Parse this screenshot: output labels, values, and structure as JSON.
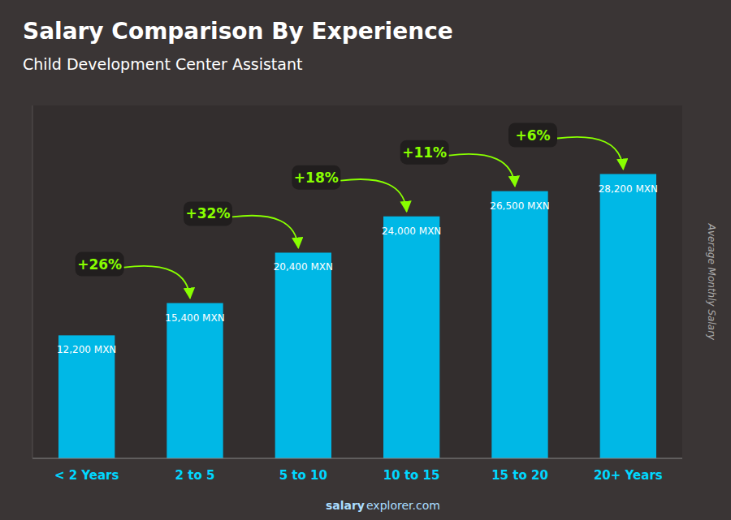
{
  "chart_data": {
    "type": "bar",
    "title": "Salary Comparison By Experience",
    "subtitle": "Child Development Center Assistant",
    "ylabel": "Average Monthly Salary",
    "categories": [
      "< 2 Years",
      "2 to 5",
      "5 to 10",
      "10 to 15",
      "15 to 20",
      "20+ Years"
    ],
    "values": [
      12200,
      15400,
      20400,
      24000,
      26500,
      28200
    ],
    "value_labels": [
      "12,200 MXN",
      "15,400 MXN",
      "20,400 MXN",
      "24,000 MXN",
      "26,500 MXN",
      "28,200 MXN"
    ],
    "data_labels": true,
    "annotations": [
      "+26%",
      "+32%",
      "+18%",
      "+11%",
      "+6%"
    ],
    "footer": [
      "salary",
      "explorer.com"
    ],
    "color": "#00b8e6",
    "ylim": [
      0,
      35000
    ],
    "tick_labels": "x",
    "grid": false
  }
}
